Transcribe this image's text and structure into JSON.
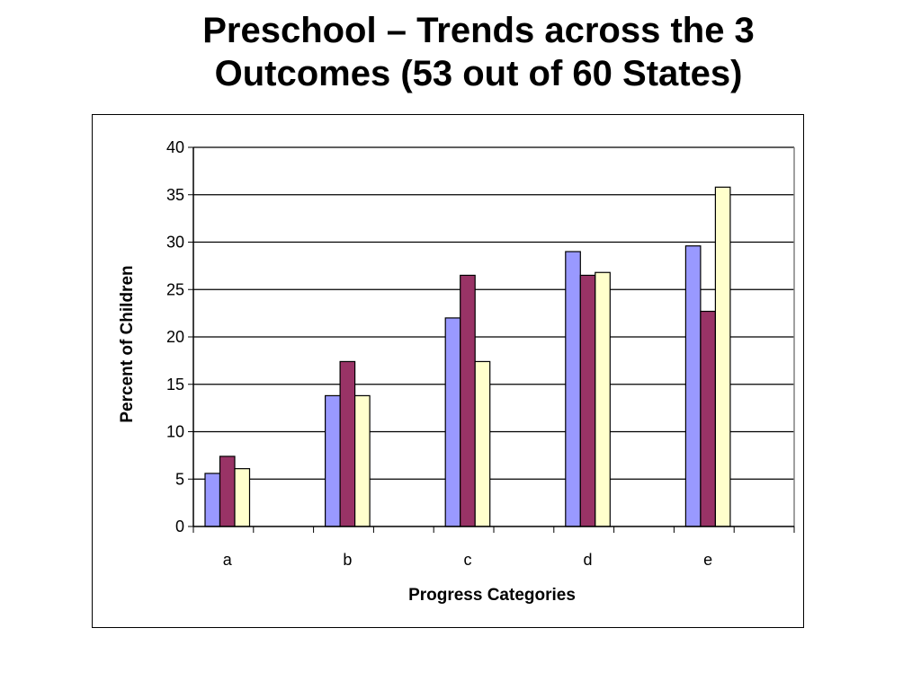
{
  "chart_data": {
    "type": "bar",
    "title_lines": [
      "Preschool – Trends across the 3",
      "Outcomes (53 out of 60 States)"
    ],
    "xlabel": "Progress Categories",
    "ylabel": "Percent of Children",
    "categories": [
      "a",
      "b",
      "c",
      "d",
      "e"
    ],
    "ylim": [
      0,
      40
    ],
    "yticks": [
      0,
      5,
      10,
      15,
      20,
      25,
      30,
      35,
      40
    ],
    "grid": true,
    "legend": "none",
    "series": [
      {
        "color": "#9999FF",
        "values": [
          5.6,
          13.8,
          22.0,
          29.0,
          29.6
        ]
      },
      {
        "color": "#993366",
        "values": [
          7.4,
          17.4,
          26.5,
          26.5,
          22.7
        ]
      },
      {
        "color": "#FFFFCC",
        "values": [
          6.1,
          13.8,
          17.4,
          26.8,
          35.8
        ]
      }
    ]
  }
}
